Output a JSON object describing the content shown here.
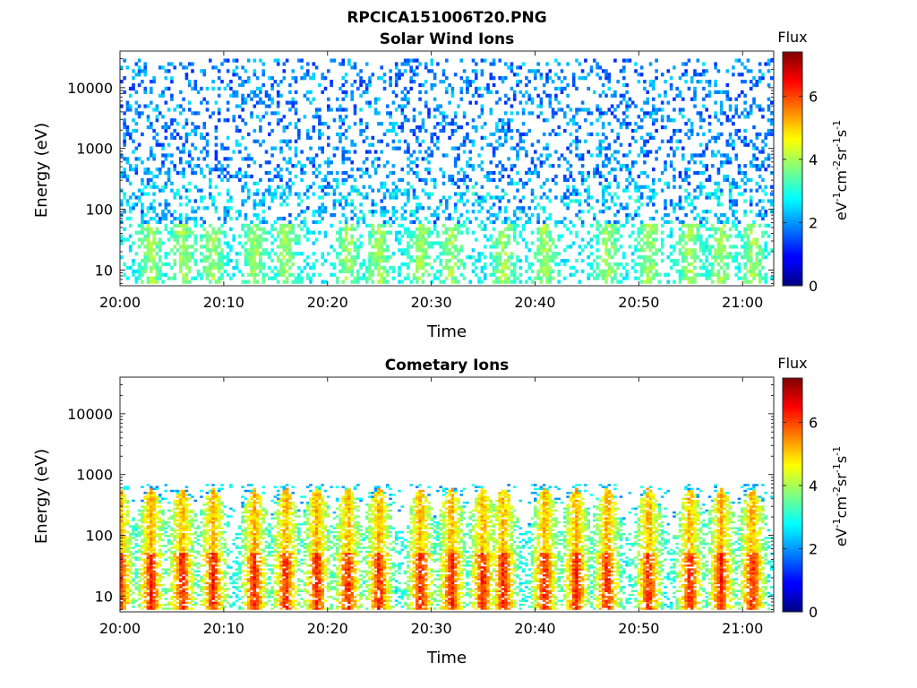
{
  "figure_title": "RPCICA151006T20.PNG",
  "colorbar": {
    "title": "Flux",
    "label_main": "eV",
    "label_sup1": "-1",
    "label_mid1": "cm",
    "label_sup2": "-2",
    "label_mid2": "sr",
    "label_sup3": "-1",
    "label_mid3": "s",
    "label_sup4": "-1",
    "range": [
      0,
      7.4
    ],
    "ticks": [
      "0",
      "2",
      "4",
      "6"
    ],
    "colormap": "jet"
  },
  "chart_data": [
    {
      "type": "heatmap",
      "title": "Solar Wind Ions",
      "xlabel": "Time",
      "ylabel": "Energy (eV)",
      "x_ticks": [
        "20:00",
        "20:10",
        "20:20",
        "20:30",
        "20:40",
        "20:50",
        "21:00"
      ],
      "y_ticks": [
        "10",
        "100",
        "1000",
        "10000"
      ],
      "xlim": [
        "20:00",
        "21:03"
      ],
      "ylim": [
        5.5,
        40000
      ],
      "yscale": "log",
      "background": "#ffffff",
      "description_values": {
        "energy_range_eV": [
          6,
          30000
        ],
        "flux_range": [
          1,
          3.8
        ],
        "bursts_at": [
          "20:03",
          "20:06",
          "20:09",
          "20:13",
          "20:16",
          "20:22",
          "20:25",
          "20:29",
          "20:32",
          "20:37",
          "20:41",
          "20:47",
          "20:51",
          "20:55",
          "20:58",
          "21:01"
        ]
      }
    },
    {
      "type": "heatmap",
      "title": "Cometary Ions",
      "xlabel": "Time",
      "ylabel": "Energy (eV)",
      "x_ticks": [
        "20:00",
        "20:10",
        "20:20",
        "20:30",
        "20:40",
        "20:50",
        "21:00"
      ],
      "y_ticks": [
        "10",
        "100",
        "1000",
        "10000"
      ],
      "xlim": [
        "20:00",
        "21:03"
      ],
      "ylim": [
        5.5,
        40000
      ],
      "yscale": "log",
      "background": "#ffffff",
      "description_values": {
        "energy_range_eV": [
          6,
          700
        ],
        "flux_range": [
          1,
          7
        ],
        "bursts_at": [
          "20:00",
          "20:03",
          "20:06",
          "20:09",
          "20:13",
          "20:16",
          "20:19",
          "20:22",
          "20:25",
          "20:29",
          "20:32",
          "20:35",
          "20:37",
          "20:41",
          "20:44",
          "20:47",
          "20:51",
          "20:55",
          "20:58",
          "21:01"
        ]
      }
    }
  ]
}
